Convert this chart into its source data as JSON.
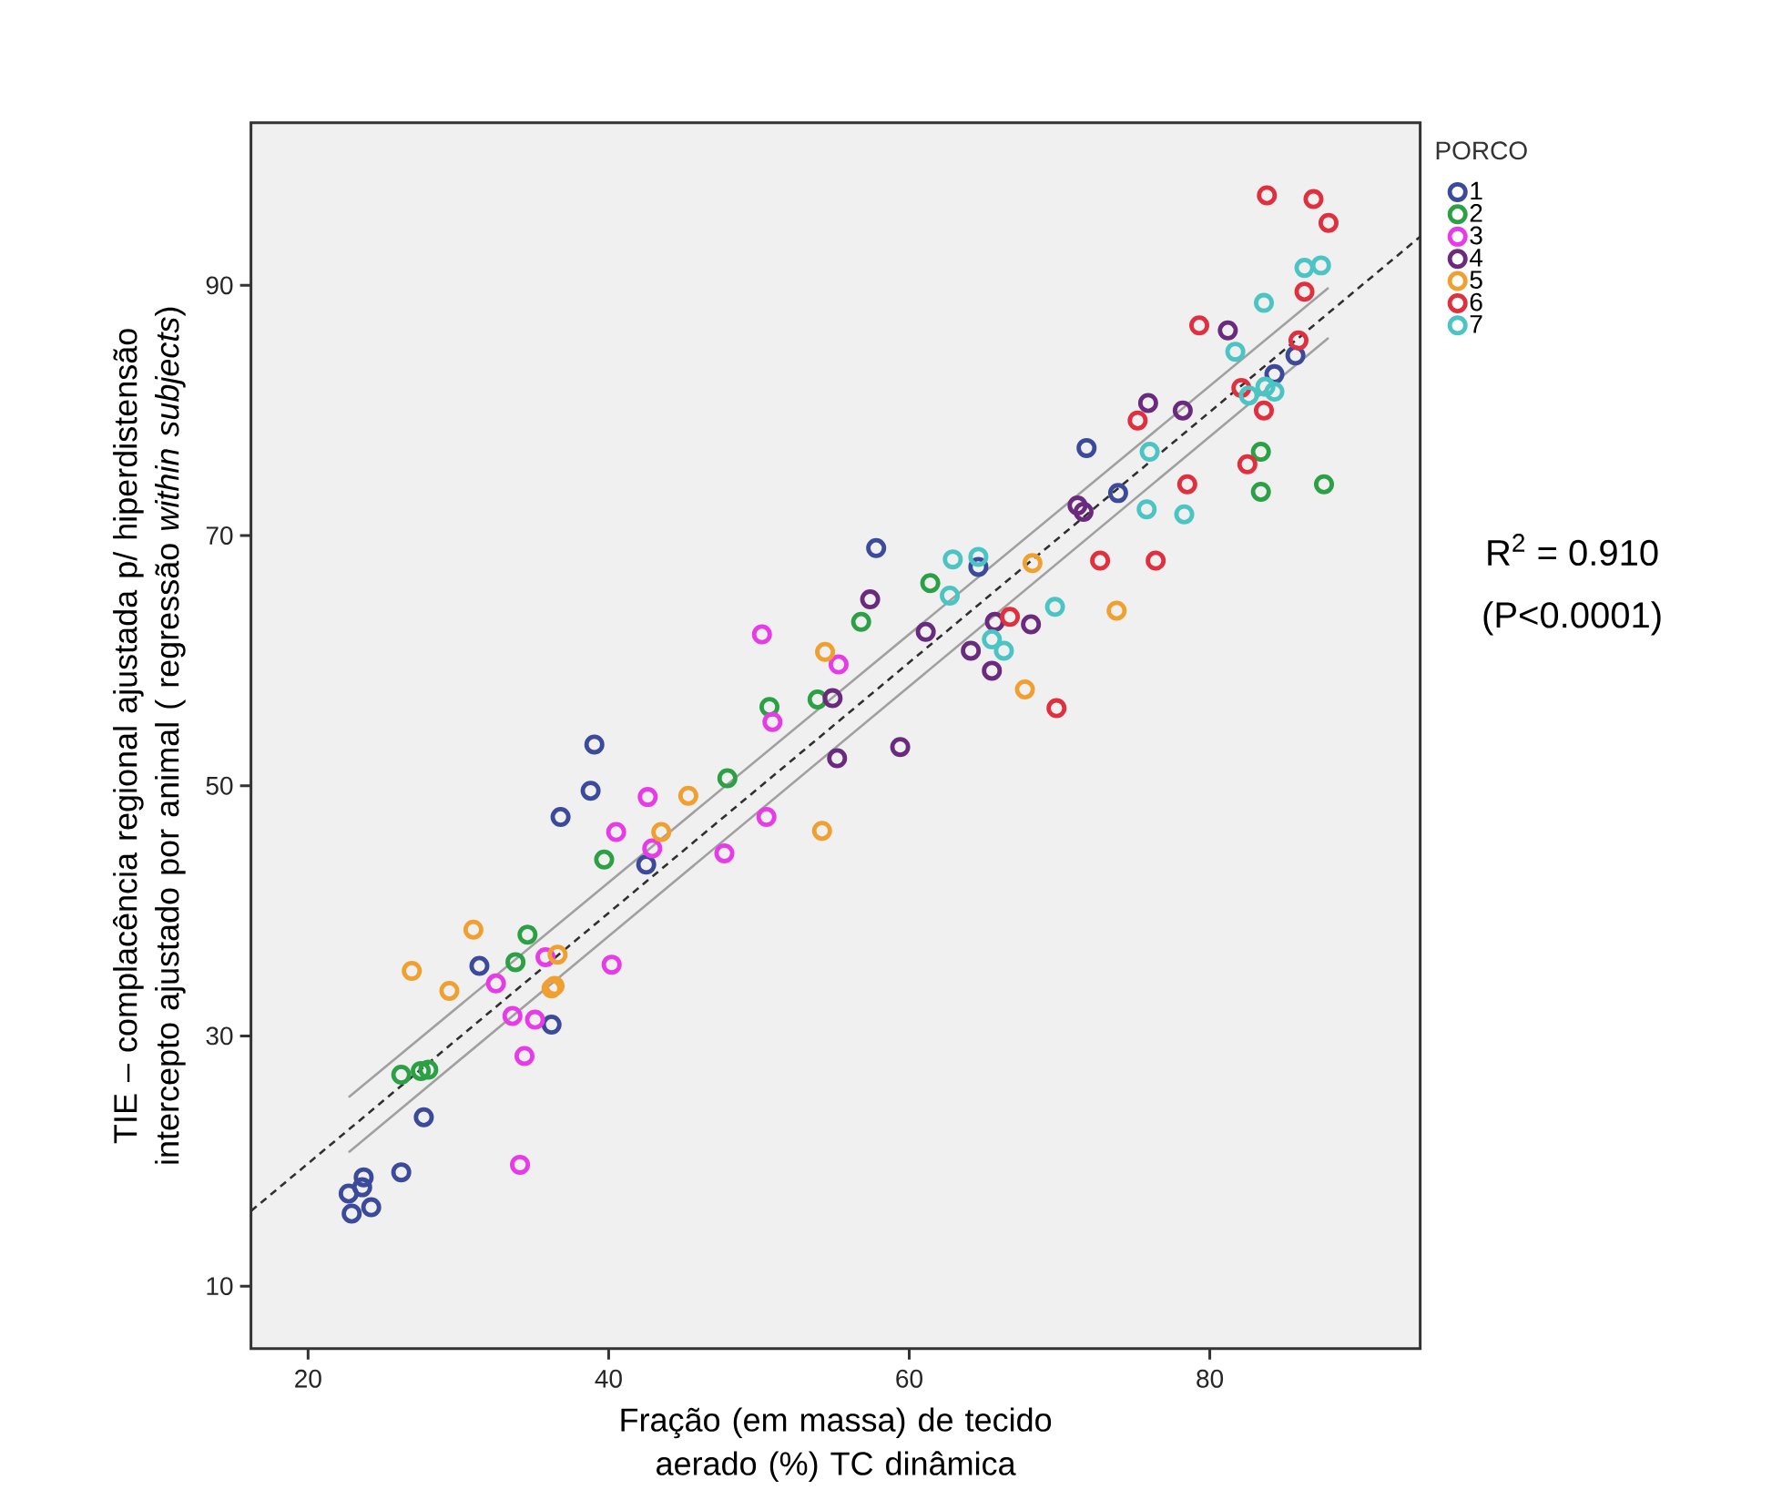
{
  "chart_data": {
    "type": "scatter",
    "xlabel": "Fração (em massa) de tecido aerado (%) TC dinâmica",
    "ylabel": "TIE – complacência regional ajustada p/ hiperdistensão intercepto ajustado por animal ( regressão *within subjects*)",
    "legend_title": "PORCO",
    "annotations": [
      "R$^{2}$ = 0.910",
      "(P<0.0001)"
    ],
    "xlim": [
      16.2,
      94
    ],
    "ylim": [
      5,
      103
    ],
    "xticks": [
      20,
      40,
      60,
      80
    ],
    "yticks": [
      10,
      30,
      50,
      70,
      90
    ],
    "legend": "top right",
    "marker": "circle",
    "series": [
      {
        "name": "1",
        "color": "#3b4a9b",
        "x": [
          39.05,
          38.8,
          36.8,
          42.5,
          31.4,
          36.2,
          27.7,
          26.2,
          23.7,
          23.6,
          22.7,
          24.2,
          22.9,
          57.8,
          64.6,
          71.8,
          73.9,
          84.3,
          85.7
        ],
        "values": [
          53.3,
          49.6,
          47.5,
          43.7,
          35.6,
          30.9,
          23.5,
          19.1,
          18.7,
          17.9,
          17.4,
          16.3,
          15.8,
          69.0,
          67.5,
          77.0,
          73.4,
          82.9,
          84.4
        ]
      },
      {
        "name": "2",
        "color": "#2ca044",
        "x": [
          47.9,
          39.7,
          34.6,
          33.8,
          26.2,
          27.5,
          28.0,
          50.7,
          53.9,
          56.8,
          61.4,
          83.4,
          83.4,
          87.6
        ],
        "values": [
          50.6,
          44.1,
          38.1,
          35.9,
          26.9,
          27.2,
          27.3,
          56.3,
          56.9,
          63.1,
          66.2,
          76.7,
          73.5,
          74.1
        ]
      },
      {
        "name": "3",
        "color": "#e83be8",
        "x": [
          50.9,
          50.2,
          55.3,
          42.6,
          50.5,
          40.5,
          42.9,
          47.7,
          32.5,
          35.8,
          40.2,
          33.6,
          35.1,
          34.4,
          34.1
        ],
        "values": [
          55.1,
          62.1,
          59.7,
          49.1,
          47.5,
          46.3,
          45.0,
          44.6,
          34.2,
          36.3,
          35.7,
          31.6,
          31.3,
          28.4,
          19.7
        ]
      },
      {
        "name": "4",
        "color": "#6a2a7e",
        "x": [
          54.9,
          55.2,
          59.4,
          57.4,
          61.1,
          64.1,
          65.5,
          65.7,
          68.1,
          71.2,
          71.6,
          75.9,
          78.2,
          81.2
        ],
        "values": [
          57.0,
          52.2,
          53.1,
          64.9,
          62.3,
          60.8,
          59.2,
          63.1,
          62.9,
          72.4,
          71.9,
          80.6,
          80.0,
          86.4
        ]
      },
      {
        "name": "5",
        "color": "#f0a030",
        "x": [
          54.4,
          54.2,
          45.3,
          43.5,
          31.0,
          26.9,
          29.4,
          36.6,
          36.4,
          36.2,
          67.7,
          68.2,
          73.8
        ],
        "values": [
          60.7,
          46.4,
          49.2,
          46.3,
          38.5,
          35.2,
          33.6,
          36.5,
          34.0,
          33.8,
          57.7,
          67.8,
          64.0
        ]
      },
      {
        "name": "6",
        "color": "#e03040",
        "x": [
          66.7,
          69.8,
          72.7,
          76.4,
          78.5,
          75.2,
          79.3,
          83.8,
          86.9,
          87.9,
          86.3,
          85.9,
          82.1,
          83.6,
          82.5
        ],
        "values": [
          63.5,
          56.2,
          68.0,
          68.0,
          74.1,
          79.2,
          86.8,
          97.2,
          96.9,
          95.0,
          89.5,
          85.6,
          81.8,
          80.0,
          75.7
        ]
      },
      {
        "name": "7",
        "color": "#4cc4c4",
        "x": [
          62.9,
          64.6,
          62.7,
          65.5,
          66.3,
          69.7,
          75.8,
          78.3,
          76.0,
          81.7,
          83.6,
          86.3,
          87.4,
          82.6,
          84.3,
          83.7
        ],
        "values": [
          68.1,
          68.3,
          65.2,
          61.7,
          60.8,
          64.3,
          72.1,
          71.7,
          76.7,
          84.7,
          88.6,
          91.4,
          91.6,
          81.2,
          81.5,
          81.9
        ]
      },
      {
        "type": "line",
        "marker": "none",
        "color": "#a0a0a0",
        "x": [
          22.7,
          87.9
        ],
        "values": [
          25.1,
          89.8
        ]
      },
      {
        "type": "line",
        "marker": "none",
        "color": "#a0a0a0",
        "x": [
          22.7,
          87.9
        ],
        "values": [
          20.7,
          85.8
        ]
      },
      {
        "type": "line",
        "marker": "none",
        "color": "#303030",
        "line_style": "dashed",
        "x": [
          16.2,
          94
        ],
        "values": [
          16.0,
          93.9
        ]
      }
    ]
  }
}
